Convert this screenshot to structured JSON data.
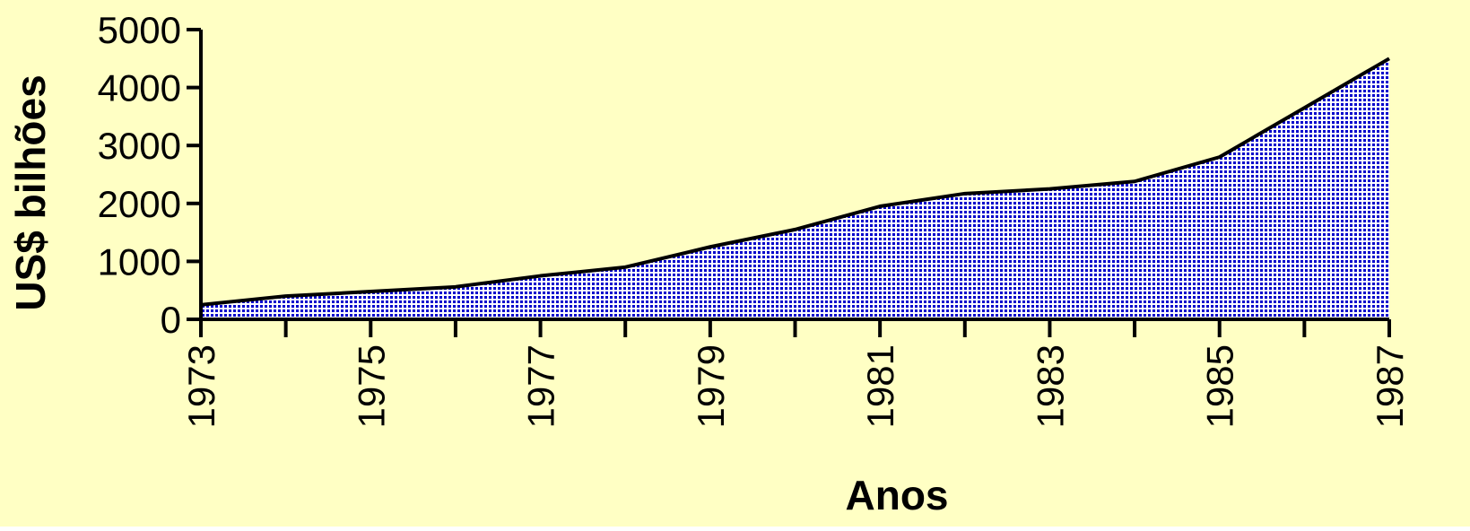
{
  "chart_data": {
    "type": "area",
    "x_label": "Anos",
    "y_label": "US$ bilhões",
    "x": [
      1973,
      1974,
      1975,
      1976,
      1977,
      1978,
      1979,
      1980,
      1981,
      1982,
      1983,
      1984,
      1985,
      1986,
      1987
    ],
    "series": [
      {
        "color": "#0000cc",
        "line_color": "#000000",
        "values": [
          250,
          400,
          480,
          560,
          750,
          900,
          1250,
          1550,
          1950,
          2170,
          2250,
          2380,
          2800,
          3650,
          4500
        ]
      }
    ],
    "xlim": [
      1973,
      1987
    ],
    "xticks": [
      1973,
      1975,
      1977,
      1979,
      1981,
      1983,
      1985,
      1987
    ],
    "xminorticks": [
      1974,
      1976,
      1978,
      1980,
      1982,
      1984,
      1986
    ],
    "ylim": [
      0,
      5000
    ],
    "yticks": [
      0,
      1000,
      2000,
      3000,
      4000,
      5000
    ],
    "background": "#ffffc4"
  }
}
